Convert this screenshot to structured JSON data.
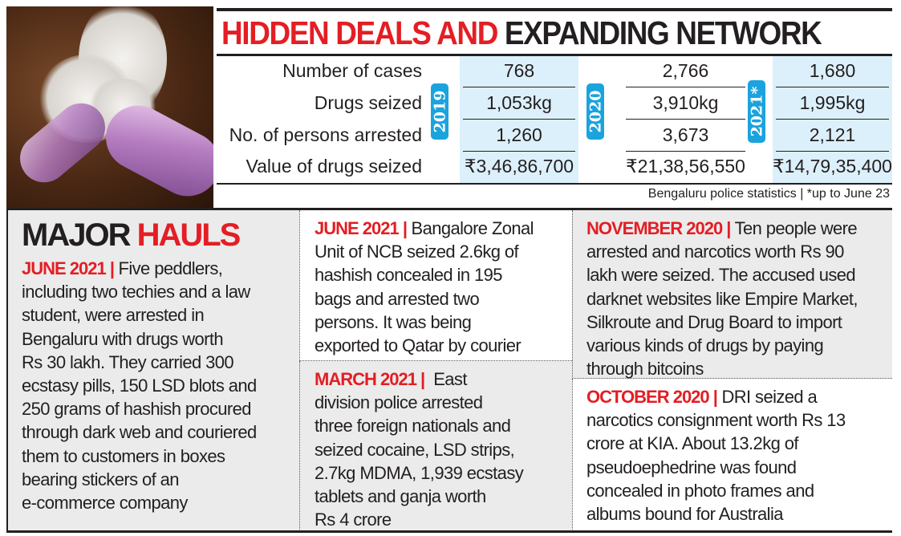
{
  "title": {
    "part1": "HIDDEN DEALS AND",
    "part2": "EXPANDING NETWORK"
  },
  "table": {
    "row_labels": [
      "Number of cases",
      "Drugs seized",
      "No. of persons arrested",
      "Value of drugs seized"
    ],
    "years": [
      {
        "label": "2019",
        "values": [
          "768",
          "1,053kg",
          "1,260",
          "₹3,46,86,700"
        ]
      },
      {
        "label": "2020",
        "values": [
          "2,766",
          "3,910kg",
          "3,673",
          "₹21,38,56,550"
        ]
      },
      {
        "label": "2021*",
        "values": [
          "1,680",
          "1,995kg",
          "2,121",
          "₹14,79,35,400"
        ]
      }
    ]
  },
  "source": "Bengaluru police statistics |  *up to June 23",
  "hauls": {
    "heading1": "MAJOR",
    "heading2": "HAULS",
    "items": [
      {
        "date": "JUNE 2021 |",
        "lines": [
          " Five peddlers,",
          "including two techies and a law",
          "student, were arrested in",
          "Bengaluru with drugs worth",
          "Rs 30 lakh. They carried 300",
          "ecstasy pills, 150 LSD blots and",
          "250 grams of hashish procured",
          "through dark web and couriered",
          "them to customers in boxes",
          "bearing stickers of an",
          "e-commerce company"
        ]
      },
      {
        "date": "JUNE 2021 |",
        "lines": [
          " Bangalore Zonal",
          "Unit of NCB seized 2.6kg of",
          "hashish concealed in 195",
          "bags and arrested two",
          "persons. It was being",
          "exported to Qatar by courier"
        ]
      },
      {
        "date": "MARCH 2021 |",
        "lines": [
          "  East",
          "division police arrested",
          "three foreign nationals and",
          "seized cocaine, LSD strips,",
          "2.7kg MDMA, 1,939 ecstasy",
          "tablets and ganja worth",
          "Rs 4 crore"
        ]
      },
      {
        "date": "NOVEMBER 2020 |",
        "lines": [
          " Ten people were",
          "arrested and narcotics worth Rs 90",
          "lakh were seized. The accused used",
          "darknet websites like Empire Market,",
          "Silkroute and Drug Board to import",
          "various kinds of drugs by paying",
          "through bitcoins"
        ]
      },
      {
        "date": "OCTOBER 2020 |",
        "lines": [
          " DRI seized a",
          "narcotics consignment worth Rs 13",
          "crore at KIA. About 13.2kg of",
          "pseudoephedrine was found",
          "concealed in photo frames and",
          "albums bound for Australia"
        ]
      }
    ]
  },
  "colors": {
    "accent_red": "#e31e24",
    "badge_blue": "#1ba3dd",
    "cell_blue": "#dcf0fb",
    "panel_gray": "#ebebeb"
  }
}
